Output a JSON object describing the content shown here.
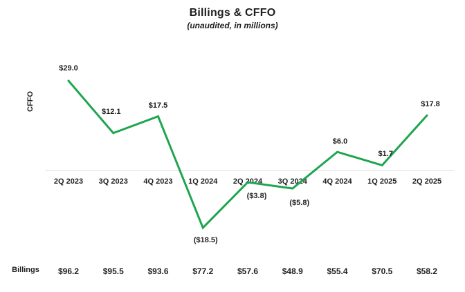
{
  "page": {
    "title": "Billings & CFFO",
    "subtitle": "(unaudited, in millions)"
  },
  "axis": {
    "y_label": "CFFO",
    "billings_row_label": "Billings"
  },
  "colors": {
    "line_green": "#1EA54F",
    "axis_gray": "#D9D9D9",
    "text": "#1F1F1F"
  },
  "chart_data": {
    "type": "line",
    "title": "Billings & CFFO",
    "subtitle": "(unaudited, in millions)",
    "xlabel": "",
    "ylabel": "CFFO",
    "categories": [
      "2Q 2023",
      "3Q 2023",
      "4Q 2023",
      "1Q 2024",
      "2Q 2024",
      "3Q 2024",
      "4Q 2024",
      "1Q 2025",
      "2Q 2025"
    ],
    "series": [
      {
        "name": "CFFO",
        "values": [
          29.0,
          12.1,
          17.5,
          -18.5,
          -3.8,
          -5.8,
          6.0,
          1.7,
          17.8
        ],
        "labels": [
          "$29.0",
          "$12.1",
          "$17.5",
          "($18.5)",
          "($3.8)",
          "($5.8)",
          "$6.0",
          "$1.7",
          "$17.8"
        ]
      },
      {
        "name": "Billings",
        "values": [
          96.2,
          95.5,
          93.6,
          77.2,
          57.6,
          48.9,
          55.4,
          70.5,
          58.2
        ],
        "labels": [
          "$96.2",
          "$95.5",
          "$93.6",
          "$77.2",
          "$57.6",
          "$48.9",
          "$55.4",
          "$70.5",
          "$58.2"
        ]
      }
    ],
    "ylim": [
      -25,
      35
    ],
    "grid": false,
    "legend": "none"
  }
}
